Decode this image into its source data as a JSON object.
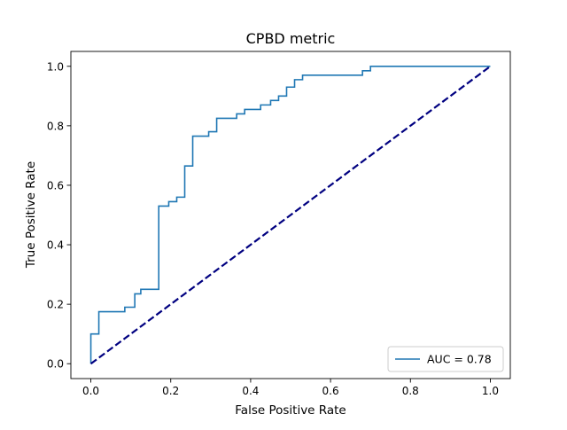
{
  "chart_data": {
    "type": "line",
    "title": "CPBD metric",
    "xlabel": "False Positive Rate",
    "ylabel": "True Positive Rate",
    "xlim": [
      -0.05,
      1.05
    ],
    "ylim": [
      -0.05,
      1.05
    ],
    "xticks": [
      0.0,
      0.2,
      0.4,
      0.6,
      0.8,
      1.0
    ],
    "yticks": [
      0.0,
      0.2,
      0.4,
      0.6,
      0.8,
      1.0
    ],
    "xtick_labels": [
      "0.0",
      "0.2",
      "0.4",
      "0.6",
      "0.8",
      "1.0"
    ],
    "ytick_labels": [
      "0.0",
      "0.2",
      "0.4",
      "0.6",
      "0.8",
      "1.0"
    ],
    "grid": false,
    "legend_position": "lower-right",
    "series": [
      {
        "name": "AUC = 0.78",
        "color": "#1f77b4",
        "style": "solid",
        "x": [
          0.0,
          0.0,
          0.02,
          0.02,
          0.085,
          0.085,
          0.11,
          0.11,
          0.125,
          0.125,
          0.17,
          0.17,
          0.195,
          0.195,
          0.215,
          0.215,
          0.235,
          0.235,
          0.255,
          0.255,
          0.295,
          0.295,
          0.315,
          0.315,
          0.365,
          0.365,
          0.385,
          0.385,
          0.425,
          0.425,
          0.45,
          0.45,
          0.47,
          0.47,
          0.49,
          0.49,
          0.51,
          0.51,
          0.53,
          0.53,
          0.68,
          0.68,
          0.7,
          0.7,
          1.0
        ],
        "y": [
          0.0,
          0.1,
          0.1,
          0.175,
          0.175,
          0.19,
          0.19,
          0.235,
          0.235,
          0.25,
          0.25,
          0.53,
          0.53,
          0.545,
          0.545,
          0.56,
          0.56,
          0.665,
          0.665,
          0.765,
          0.765,
          0.78,
          0.78,
          0.825,
          0.825,
          0.84,
          0.84,
          0.855,
          0.855,
          0.87,
          0.87,
          0.885,
          0.885,
          0.9,
          0.9,
          0.93,
          0.93,
          0.955,
          0.955,
          0.97,
          0.97,
          0.985,
          0.985,
          1.0,
          1.0
        ]
      },
      {
        "color": "#000080",
        "style": "dashed",
        "x": [
          0.0,
          1.0
        ],
        "y": [
          0.0,
          1.0
        ]
      }
    ]
  }
}
